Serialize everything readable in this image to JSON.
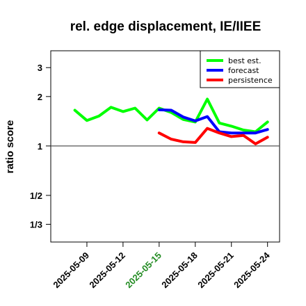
{
  "chart_data": {
    "type": "line",
    "title": "rel. edge displacement, IE/IIEE",
    "xlabel": "",
    "ylabel": "ratio score",
    "y_scale": "log",
    "ylim": [
      0.26,
      3.8
    ],
    "xlim": [
      "2025-05-06",
      "2025-05-25"
    ],
    "y_ticks": [
      {
        "value": 3,
        "label": "3"
      },
      {
        "value": 2,
        "label": "2"
      },
      {
        "value": 1,
        "label": "1"
      },
      {
        "value": 0.5,
        "label": "1/2"
      },
      {
        "value": 0.3333,
        "label": "1/3"
      }
    ],
    "x_ticks": [
      {
        "date": "2025-05-09",
        "label": "2025-05-09",
        "color": "#000000"
      },
      {
        "date": "2025-05-12",
        "label": "2025-05-12",
        "color": "#000000"
      },
      {
        "date": "2025-05-15",
        "label": "2025-05-15",
        "color": "#228b22"
      },
      {
        "date": "2025-05-18",
        "label": "2025-05-18",
        "color": "#000000"
      },
      {
        "date": "2025-05-21",
        "label": "2025-05-21",
        "color": "#000000"
      },
      {
        "date": "2025-05-24",
        "label": "2025-05-24",
        "color": "#000000"
      }
    ],
    "reference_line": 1,
    "grid": false,
    "legend_position": "top-right",
    "series": [
      {
        "name": "best est.",
        "color": "#00ff00",
        "x": [
          "2025-05-08",
          "2025-05-09",
          "2025-05-10",
          "2025-05-11",
          "2025-05-12",
          "2025-05-13",
          "2025-05-14",
          "2025-05-15",
          "2025-05-16",
          "2025-05-17",
          "2025-05-18",
          "2025-05-19",
          "2025-05-20",
          "2025-05-21",
          "2025-05-22",
          "2025-05-23",
          "2025-05-24"
        ],
        "y": [
          1.65,
          1.43,
          1.52,
          1.72,
          1.62,
          1.7,
          1.44,
          1.7,
          1.6,
          1.45,
          1.4,
          1.93,
          1.38,
          1.32,
          1.25,
          1.22,
          1.4
        ]
      },
      {
        "name": "forecast",
        "color": "#0000ff",
        "x": [
          "2025-05-15",
          "2025-05-16",
          "2025-05-17",
          "2025-05-18",
          "2025-05-19",
          "2025-05-20",
          "2025-05-21",
          "2025-05-22",
          "2025-05-23",
          "2025-05-24"
        ],
        "y": [
          1.66,
          1.65,
          1.5,
          1.42,
          1.51,
          1.22,
          1.2,
          1.2,
          1.2,
          1.26
        ]
      },
      {
        "name": "persistence",
        "color": "#ff0000",
        "x": [
          "2025-05-15",
          "2025-05-16",
          "2025-05-17",
          "2025-05-18",
          "2025-05-19",
          "2025-05-20",
          "2025-05-21",
          "2025-05-22",
          "2025-05-23",
          "2025-05-24"
        ],
        "y": [
          1.2,
          1.1,
          1.06,
          1.05,
          1.28,
          1.2,
          1.14,
          1.16,
          1.03,
          1.13
        ]
      }
    ]
  }
}
